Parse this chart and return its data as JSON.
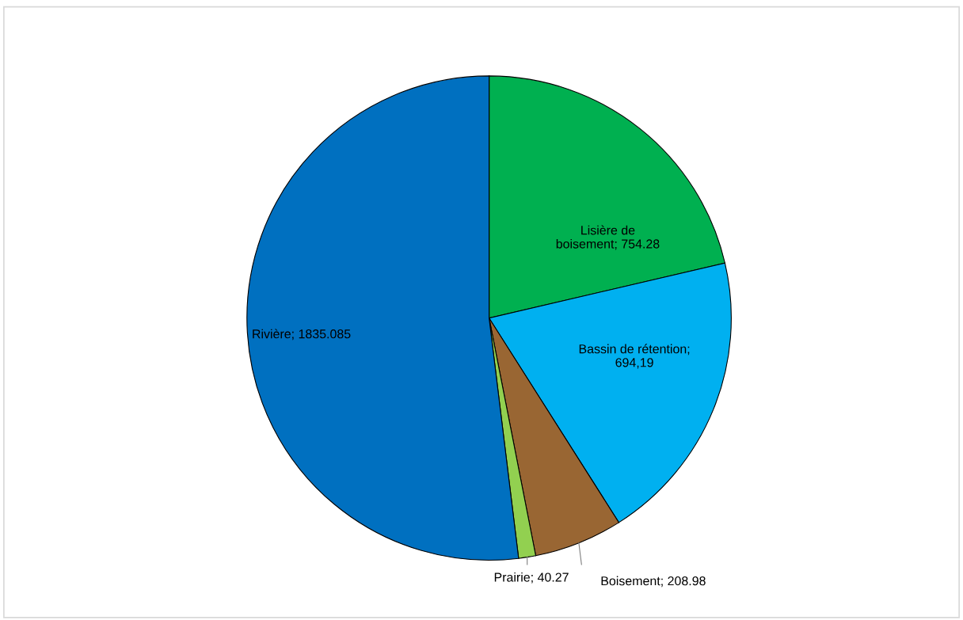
{
  "chart_data": {
    "type": "pie",
    "categories": [
      "Lisière de boisement",
      "Bassin de rétention",
      "Boisement",
      "Prairie",
      "Rivière"
    ],
    "values": [
      754.28,
      694.19,
      208.98,
      40.27,
      1835.085
    ],
    "value_labels": [
      "; 754.28",
      "; 694,19",
      "; 208.98",
      "; 40.27",
      "; 1835.085"
    ],
    "colors": [
      "#00b050",
      "#00b0f0",
      "#996633",
      "#92d050",
      "#0070c0"
    ],
    "legend": false
  }
}
